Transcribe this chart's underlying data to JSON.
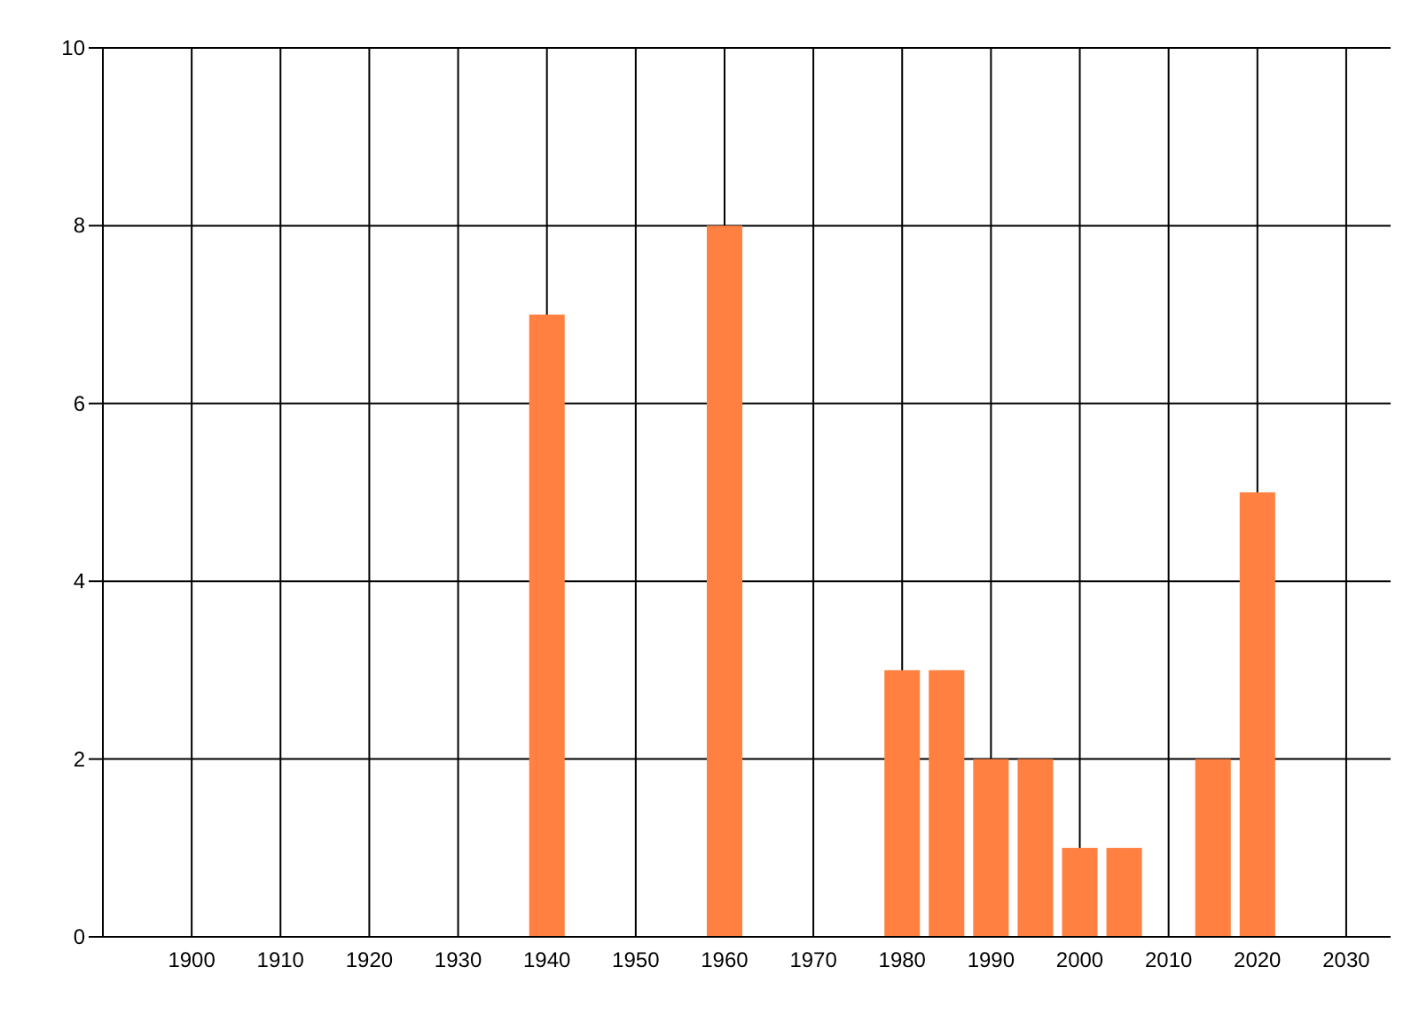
{
  "chart_data": {
    "type": "bar",
    "x": [
      1940,
      1960,
      1980,
      1985,
      1990,
      1995,
      2000,
      2005,
      2015,
      2020
    ],
    "values": [
      7,
      8,
      3,
      3,
      2,
      2,
      1,
      1,
      2,
      5
    ],
    "color": "#ff8040",
    "xlim": [
      1890,
      2035
    ],
    "xticks": [
      1900,
      1910,
      1920,
      1930,
      1940,
      1950,
      1960,
      1970,
      1980,
      1990,
      2000,
      2010,
      2020,
      2030
    ],
    "ylim": [
      0,
      10
    ],
    "yticks": [
      0,
      2,
      4,
      6,
      8,
      10
    ],
    "grid": true
  }
}
